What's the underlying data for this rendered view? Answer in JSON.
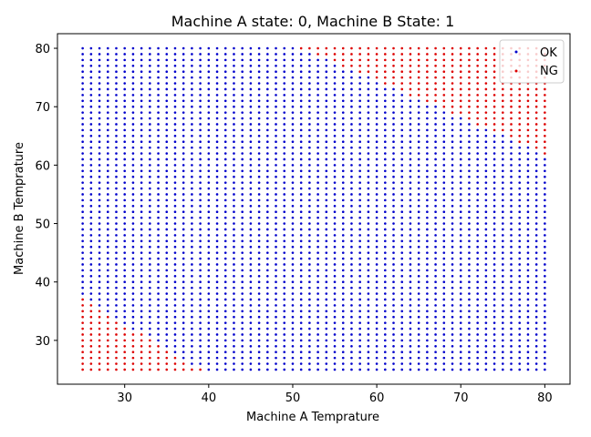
{
  "chart_data": {
    "type": "scatter",
    "title": "Machine A state: 0, Machine B State: 1",
    "xlabel": "Machine A Temprature",
    "ylabel": "Machine B Temprature",
    "xlim": [
      22,
      83
    ],
    "ylim": [
      22.5,
      82.5
    ],
    "xticks": [
      30,
      40,
      50,
      60,
      70,
      80
    ],
    "yticks": [
      30,
      40,
      50,
      60,
      70,
      80
    ],
    "grid": false,
    "legend_position": "top-right",
    "x": {
      "start": 25,
      "stop": 80,
      "step": 1
    },
    "y": {
      "start": 25,
      "stop": 80,
      "step": 1
    },
    "series": [
      {
        "name": "OK",
        "color": "#0000cc"
      },
      {
        "name": "NG",
        "color": "#dd0000"
      }
    ],
    "classification_rule": "NG where y <= 37 - (x - 25) * (12 / 14) (lower-left region) or y >= 80 - (x - 51) * (18 / 29) (upper-right region); OK elsewhere"
  }
}
